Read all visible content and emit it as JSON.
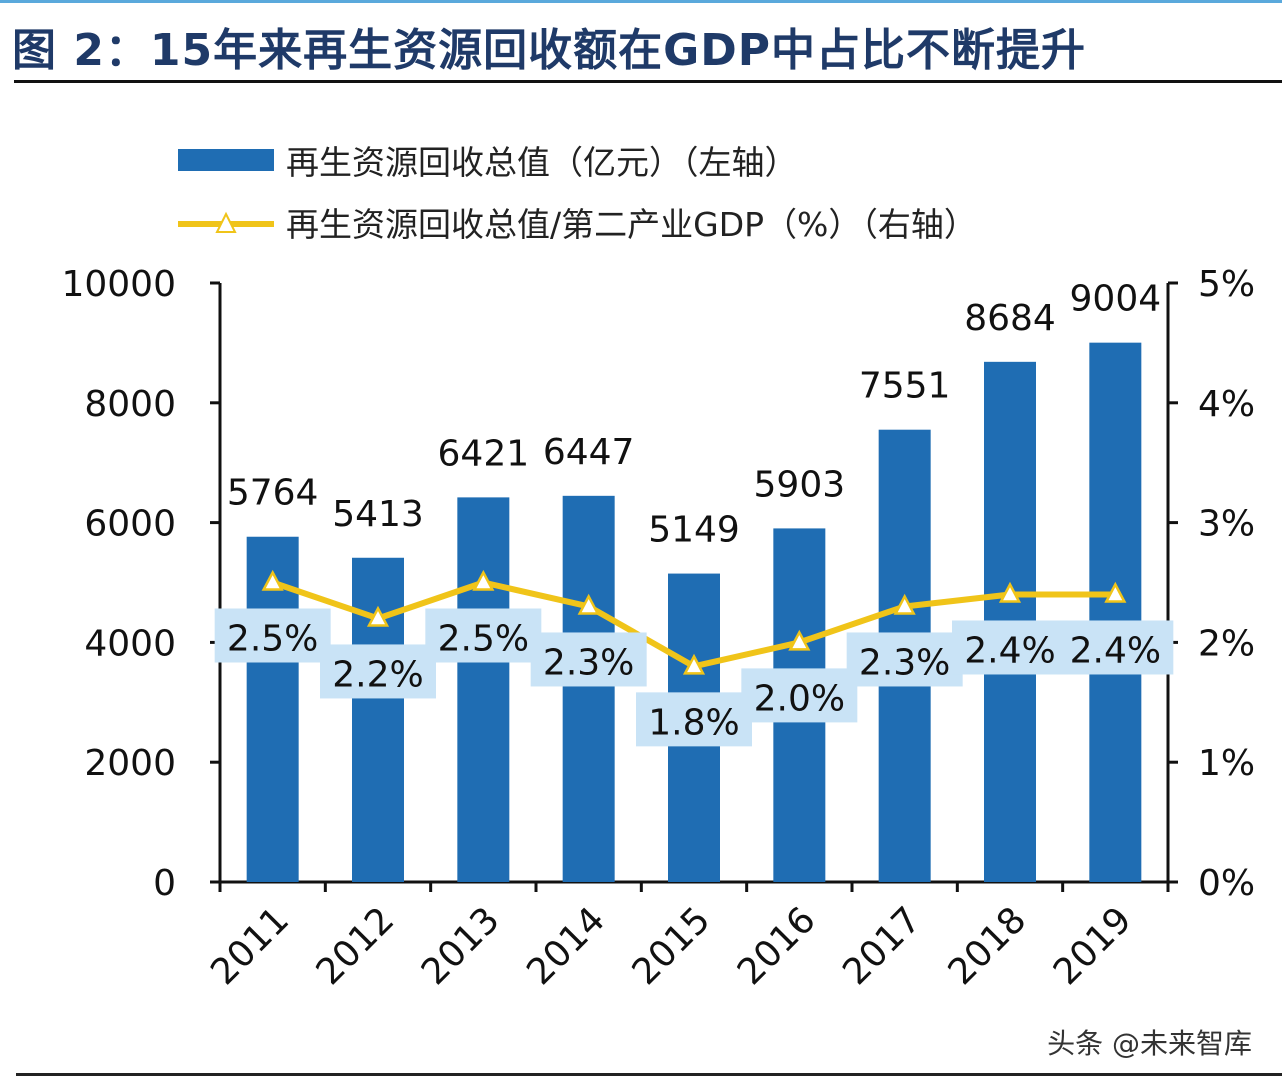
{
  "title": "图 2：15年来再生资源回收额在GDP中占比不断提升",
  "watermark": "头条 @未来智库",
  "chart_data": {
    "type": "bar+line",
    "categories": [
      "2011",
      "2012",
      "2013",
      "2014",
      "2015",
      "2016",
      "2017",
      "2018",
      "2019"
    ],
    "series": [
      {
        "name": "再生资源回收总值（亿元）（左轴）",
        "type": "bar",
        "axis": "left",
        "color": "#1f6db3",
        "values": [
          5764,
          5413,
          6421,
          6447,
          5149,
          5903,
          7551,
          8684,
          9004
        ]
      },
      {
        "name": "再生资源回收总值/第二产业GDP（%）（右轴）",
        "type": "line",
        "axis": "right",
        "color": "#f0c419",
        "marker": "triangle",
        "values": [
          2.5,
          2.2,
          2.5,
          2.3,
          1.8,
          2.0,
          2.3,
          2.4,
          2.4
        ],
        "labels": [
          "2.5%",
          "2.2%",
          "2.5%",
          "2.3%",
          "1.8%",
          "2.0%",
          "2.3%",
          "2.4%",
          "2.4%"
        ]
      }
    ],
    "left_axis": {
      "ylim": [
        0,
        10000
      ],
      "ticks": [
        "0",
        "2000",
        "4000",
        "6000",
        "8000",
        "10000"
      ]
    },
    "right_axis": {
      "ylim": [
        0,
        5
      ],
      "ticks": [
        "0%",
        "1%",
        "2%",
        "3%",
        "4%",
        "5%"
      ]
    },
    "legend_placement": "top-left",
    "grid": false,
    "label_bg_color": "#c9e3f6"
  }
}
